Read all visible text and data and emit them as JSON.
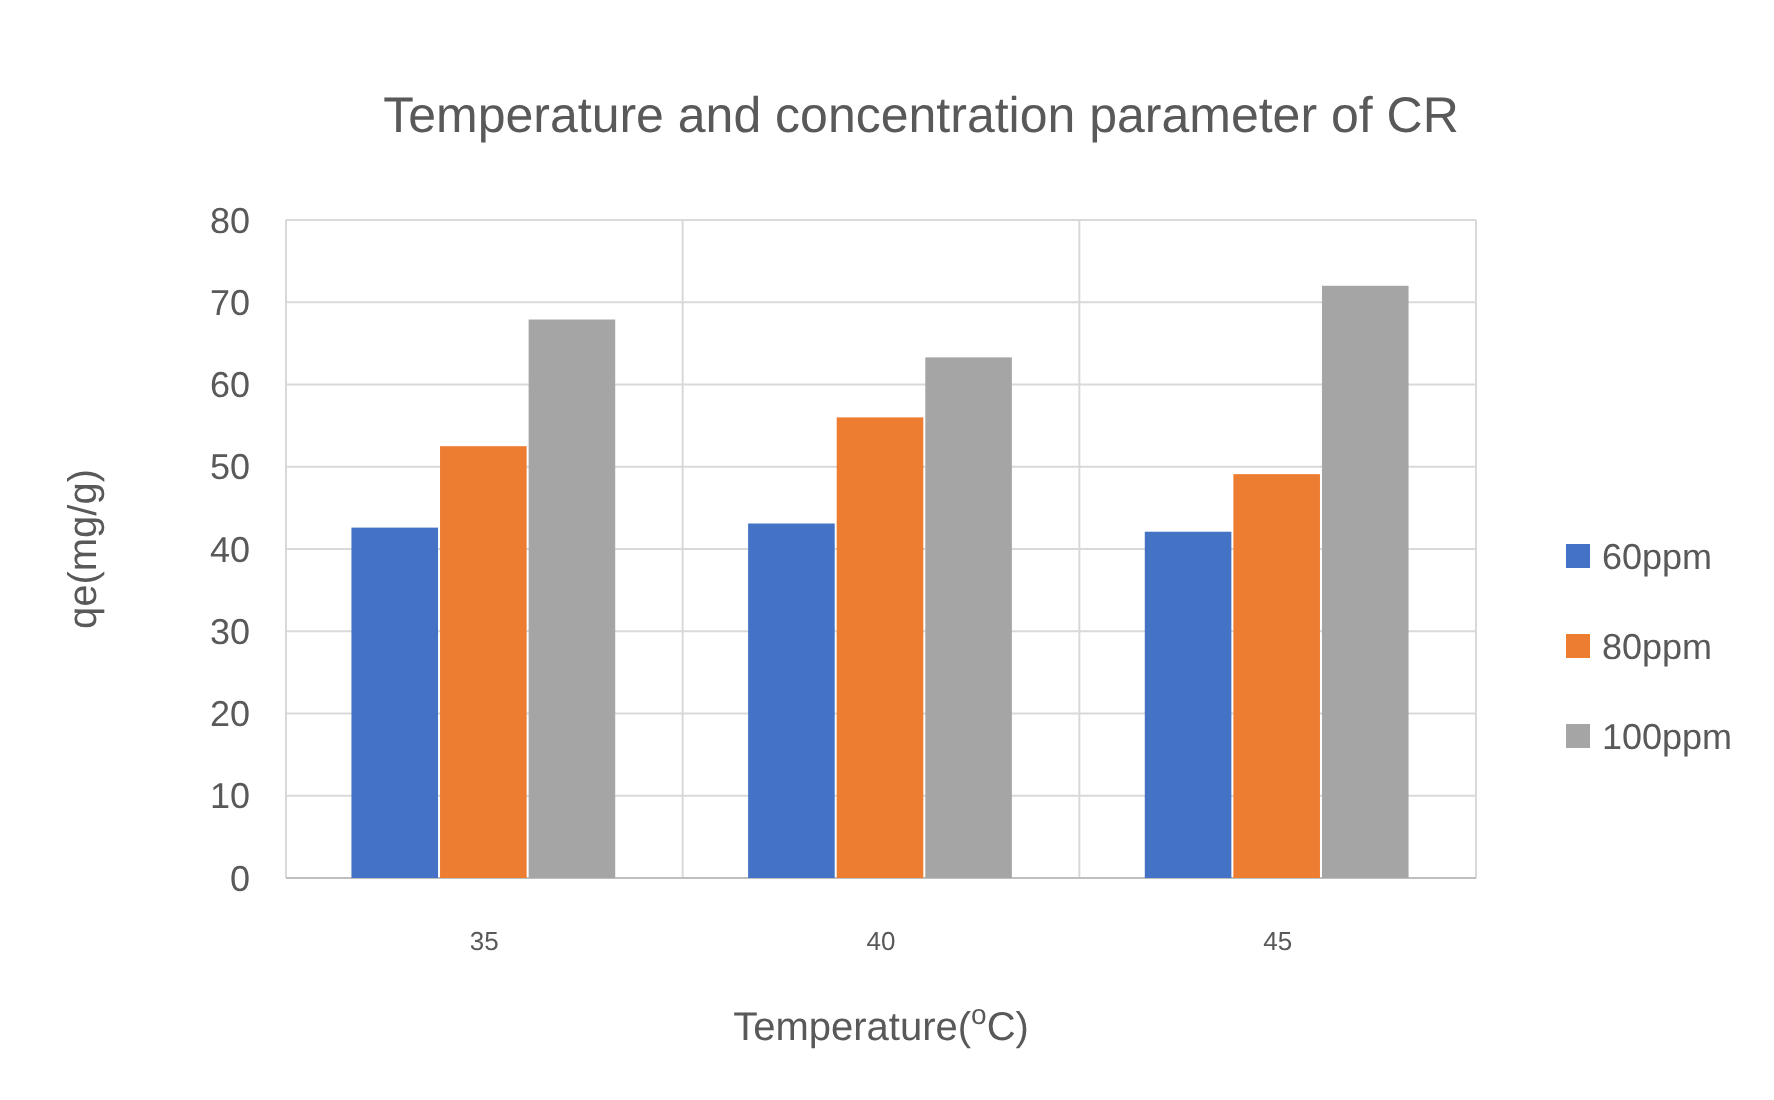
{
  "chart_data": {
    "type": "bar",
    "title": "Temperature and concentration parameter of CR",
    "xlabel": "Temperature($^{o}$C)",
    "ylabel": "qe(mg/g)",
    "categories": [
      "35",
      "40",
      "45"
    ],
    "series": [
      {
        "name": "60ppm",
        "color": "#4472c4",
        "values": [
          42.6,
          43.1,
          42.1
        ]
      },
      {
        "name": "80ppm",
        "color": "#ed7d31",
        "values": [
          52.5,
          56,
          49.1
        ]
      },
      {
        "name": "100ppm",
        "color": "#a5a5a5",
        "values": [
          67.9,
          63.3,
          72
        ]
      }
    ],
    "ylim": [
      0,
      80
    ],
    "yticks": [
      0,
      10,
      20,
      30,
      40,
      50,
      60,
      70,
      80
    ],
    "grid": true,
    "legend": "right"
  }
}
